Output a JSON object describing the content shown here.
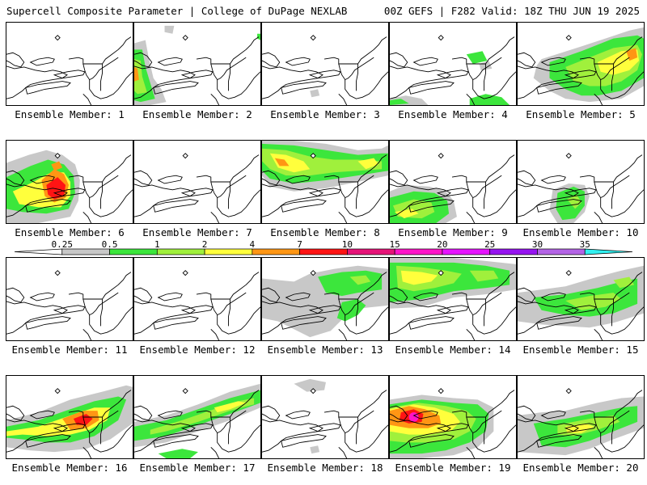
{
  "header": {
    "title": "Supercell Composite Parameter | College of DuPage NEXLAB",
    "valid": "00Z GEFS | F282 Valid: 18Z THU JUN 19 2025"
  },
  "legend": {
    "levels": [
      "0.25",
      "0.5",
      "1",
      "2",
      "4",
      "7",
      "10",
      "15",
      "20",
      "25",
      "30",
      "35"
    ],
    "colors": [
      "#ffffff",
      "#c8c8c8",
      "#3ce63c",
      "#a0f03c",
      "#ffff3c",
      "#ff9614",
      "#ff1414",
      "#e61478",
      "#ff14c8",
      "#e614ff",
      "#9614f0",
      "#b464e6",
      "#32f0f0"
    ]
  },
  "members": [
    {
      "label": "Ensemble Member: 1"
    },
    {
      "label": "Ensemble Member: 2"
    },
    {
      "label": "Ensemble Member: 3"
    },
    {
      "label": "Ensemble Member: 4"
    },
    {
      "label": "Ensemble Member: 5"
    },
    {
      "label": "Ensemble Member: 6"
    },
    {
      "label": "Ensemble Member: 7"
    },
    {
      "label": "Ensemble Member: 8"
    },
    {
      "label": "Ensemble Member: 9"
    },
    {
      "label": "Ensemble Member: 10"
    },
    {
      "label": "Ensemble Member: 11"
    },
    {
      "label": "Ensemble Member: 12"
    },
    {
      "label": "Ensemble Member: 13"
    },
    {
      "label": "Ensemble Member: 14"
    },
    {
      "label": "Ensemble Member: 15"
    },
    {
      "label": "Ensemble Member: 16"
    },
    {
      "label": "Ensemble Member: 17"
    },
    {
      "label": "Ensemble Member: 18"
    },
    {
      "label": "Ensemble Member: 19"
    },
    {
      "label": "Ensemble Member: 20"
    }
  ]
}
